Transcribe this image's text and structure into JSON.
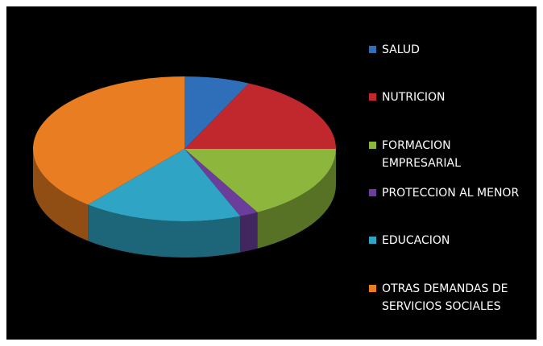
{
  "chart_data": {
    "type": "pie",
    "categories": [
      "SALUD",
      "NUTRICION",
      "FORMACION EMPRESARIAL",
      "PROTECCION AL MENOR",
      "EDUCACION",
      "OTRAS DEMANDAS DE SERVICIOS SOCIALES"
    ],
    "values": [
      7,
      18,
      17,
      2,
      17,
      39
    ],
    "colors": [
      "#2f6fba",
      "#c0282d",
      "#8db63c",
      "#6a3e9a",
      "#2fa4c4",
      "#e87d22"
    ],
    "legend": "right"
  }
}
